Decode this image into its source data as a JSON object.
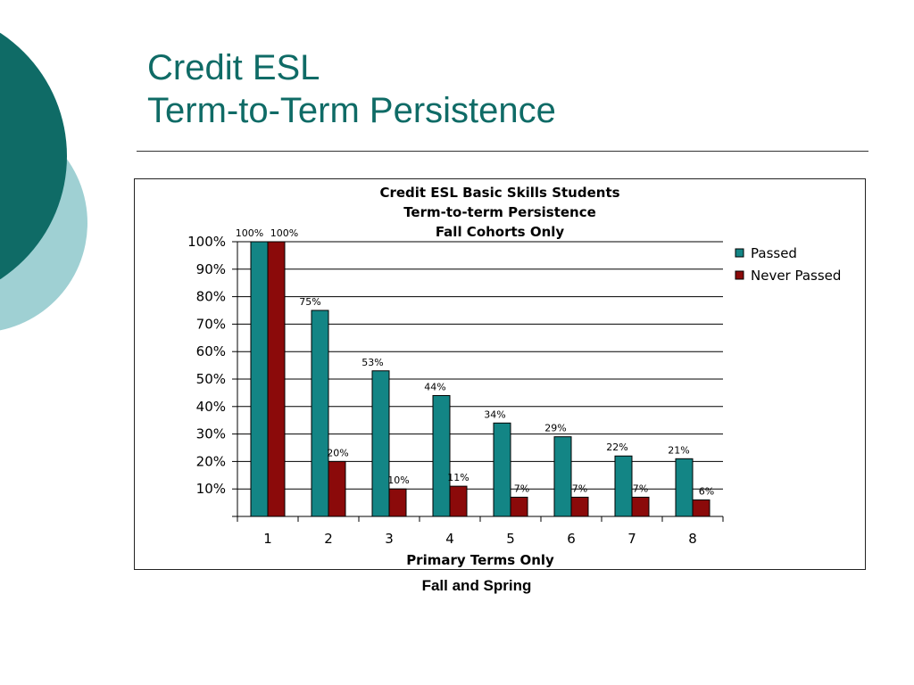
{
  "slide": {
    "title_line1": "Credit ESL",
    "title_line2": "Term-to-Term Persistence",
    "footer_caption": "Fall and Spring",
    "colors": {
      "title": "#0f6b66",
      "circle_dark": "#0f6b66",
      "circle_light": "#9fd0d3"
    }
  },
  "chart_data": {
    "type": "bar",
    "title_lines": [
      "Credit ESL Basic Skills Students",
      "Term-to-term Persistence",
      "Fall Cohorts Only"
    ],
    "xlabel": "Primary Terms Only",
    "ylabel": "",
    "categories": [
      "1",
      "2",
      "3",
      "4",
      "5",
      "6",
      "7",
      "8"
    ],
    "y_ticks": [
      "10%",
      "20%",
      "30%",
      "40%",
      "50%",
      "60%",
      "70%",
      "80%",
      "90%",
      "100%"
    ],
    "ylim": [
      0,
      100
    ],
    "grid": true,
    "legend_position": "right",
    "series": [
      {
        "name": "Passed",
        "color": "#138585",
        "values": [
          100,
          75,
          53,
          44,
          34,
          29,
          22,
          21
        ],
        "labels": [
          "100%",
          "75%",
          "53%",
          "44%",
          "34%",
          "29%",
          "22%",
          "21%"
        ]
      },
      {
        "name": "Never Passed",
        "color": "#8b0a0a",
        "values": [
          100,
          20,
          10,
          11,
          7,
          7,
          7,
          6
        ],
        "labels": [
          "100%",
          "20%",
          "10%",
          "11%",
          "7%",
          "7%",
          "7%",
          "6%"
        ]
      }
    ]
  }
}
